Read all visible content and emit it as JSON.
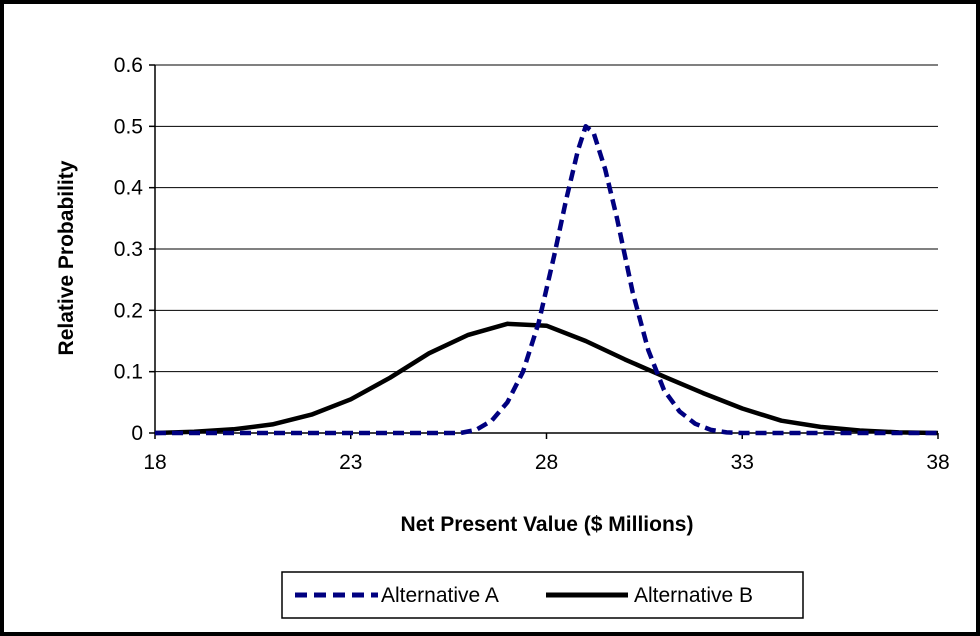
{
  "chart_data": {
    "type": "line",
    "title": "",
    "xlabel": "Net Present Value ($ Millions)",
    "ylabel": "Relative Probability",
    "xlim": [
      18,
      38
    ],
    "ylim": [
      0,
      0.6
    ],
    "xticks": [
      "18",
      "23",
      "28",
      "33",
      "38"
    ],
    "yticks": [
      "0",
      "0.1",
      "0.2",
      "0.3",
      "0.4",
      "0.5",
      "0.6"
    ],
    "grid": "horizontal",
    "legend": "bottom",
    "series": [
      {
        "name": "Alternative A",
        "style": "dashed",
        "color": "#000080",
        "x": [
          18,
          25,
          25.8,
          26.2,
          26.6,
          27,
          27.4,
          27.8,
          28.2,
          28.5,
          28.8,
          29,
          29.2,
          29.5,
          29.8,
          30.2,
          30.6,
          31,
          31.4,
          31.8,
          32.2,
          32.6,
          33,
          38
        ],
        "y": [
          0,
          0,
          0,
          0.005,
          0.02,
          0.05,
          0.1,
          0.18,
          0.29,
          0.38,
          0.46,
          0.5,
          0.49,
          0.43,
          0.35,
          0.23,
          0.135,
          0.07,
          0.035,
          0.015,
          0.005,
          0.001,
          0,
          0
        ]
      },
      {
        "name": "Alternative B",
        "style": "solid",
        "color": "#000000",
        "x": [
          18,
          19,
          20,
          21,
          22,
          23,
          24,
          25,
          26,
          27,
          28,
          29,
          30,
          31,
          32,
          33,
          34,
          35,
          36,
          37,
          38
        ],
        "y": [
          0,
          0.002,
          0.006,
          0.014,
          0.03,
          0.055,
          0.09,
          0.13,
          0.16,
          0.178,
          0.175,
          0.15,
          0.12,
          0.092,
          0.065,
          0.04,
          0.02,
          0.01,
          0.004,
          0.001,
          0
        ]
      }
    ]
  },
  "colors": {
    "frame": "#000000",
    "grid": "#000000",
    "series_a": "#000080",
    "series_b": "#000000"
  }
}
